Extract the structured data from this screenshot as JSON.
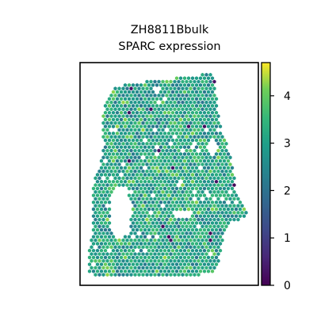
{
  "chart_data": {
    "type": "heatmap",
    "title": "ZH8811Bbulk",
    "subtitle": "SPARC expression",
    "colorbar": {
      "colormap": "viridis",
      "range": [
        0,
        4.7
      ],
      "ticks": [
        0,
        1,
        2,
        3,
        4
      ],
      "tick_labels": [
        "0",
        "1",
        "2",
        "3",
        "4"
      ],
      "colors": [
        "#440154",
        "#3b528b",
        "#21918c",
        "#5ec962",
        "#fde725"
      ]
    },
    "value_distribution": {
      "typical_min": 2.0,
      "typical_max": 4.3,
      "mode": 3.0,
      "low_outlier_value": 0.1
    },
    "grid": false,
    "axes_ticks": false
  }
}
